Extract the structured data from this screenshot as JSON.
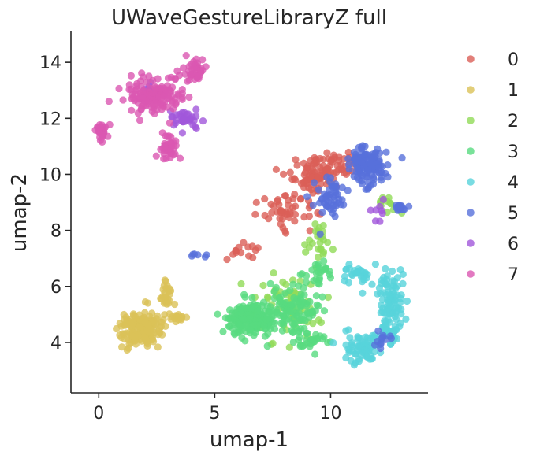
{
  "chart_data": {
    "type": "scatter",
    "title": "UWaveGestureLibraryZ full",
    "xlabel": "umap-1",
    "ylabel": "umap-2",
    "xlim": [
      -1.2,
      14.2
    ],
    "ylim": [
      2.2,
      15.1
    ],
    "xticks": [
      0,
      5,
      10
    ],
    "yticks": [
      4,
      6,
      8,
      10,
      12,
      14
    ],
    "grid": false,
    "legend_position": "right",
    "marker_alpha": 0.8,
    "series": [
      {
        "name": "0",
        "color": "#db5f57",
        "clusters": [
          {
            "cx": 9.2,
            "cy": 9.9,
            "sx": 0.9,
            "sy": 0.6,
            "n": 80,
            "seed": 11
          },
          {
            "cx": 8.1,
            "cy": 8.7,
            "sx": 0.9,
            "sy": 0.5,
            "n": 45,
            "seed": 12
          },
          {
            "cx": 6.2,
            "cy": 7.3,
            "sx": 0.5,
            "sy": 0.4,
            "n": 14,
            "seed": 13
          },
          {
            "cx": 10.5,
            "cy": 10.3,
            "sx": 0.7,
            "sy": 0.4,
            "n": 30,
            "seed": 14
          }
        ]
      },
      {
        "name": "1",
        "color": "#dbc257",
        "clusters": [
          {
            "cx": 1.9,
            "cy": 4.5,
            "sx": 0.75,
            "sy": 0.5,
            "n": 170,
            "seed": 21
          },
          {
            "cx": 2.9,
            "cy": 5.7,
            "sx": 0.2,
            "sy": 0.35,
            "n": 25,
            "seed": 22
          },
          {
            "cx": 3.4,
            "cy": 4.9,
            "sx": 0.35,
            "sy": 0.2,
            "n": 15,
            "seed": 23
          }
        ]
      },
      {
        "name": "2",
        "color": "#91db57",
        "clusters": [
          {
            "cx": 8.3,
            "cy": 5.3,
            "sx": 1.2,
            "sy": 0.9,
            "n": 60,
            "seed": 31
          },
          {
            "cx": 9.5,
            "cy": 7.6,
            "sx": 0.7,
            "sy": 0.5,
            "n": 25,
            "seed": 32
          },
          {
            "cx": 12.3,
            "cy": 8.9,
            "sx": 0.5,
            "sy": 0.3,
            "n": 12,
            "seed": 33
          }
        ]
      },
      {
        "name": "3",
        "color": "#57db80",
        "clusters": [
          {
            "cx": 6.6,
            "cy": 4.8,
            "sx": 0.85,
            "sy": 0.5,
            "n": 190,
            "seed": 41
          },
          {
            "cx": 8.4,
            "cy": 5.1,
            "sx": 0.9,
            "sy": 0.6,
            "n": 90,
            "seed": 42
          },
          {
            "cx": 9.3,
            "cy": 6.3,
            "sx": 0.6,
            "sy": 0.5,
            "n": 30,
            "seed": 43
          },
          {
            "cx": 9.2,
            "cy": 4.1,
            "sx": 0.8,
            "sy": 0.3,
            "n": 30,
            "seed": 44
          }
        ]
      },
      {
        "name": "4",
        "color": "#57d3db",
        "clusters": [
          {
            "cx": 12.6,
            "cy": 5.6,
            "sx": 0.45,
            "sy": 0.8,
            "n": 80,
            "seed": 51
          },
          {
            "cx": 11.4,
            "cy": 3.8,
            "sx": 0.7,
            "sy": 0.45,
            "n": 80,
            "seed": 52
          },
          {
            "cx": 11.3,
            "cy": 6.4,
            "sx": 0.6,
            "sy": 0.3,
            "n": 30,
            "seed": 53
          },
          {
            "cx": 12.5,
            "cy": 4.3,
            "sx": 0.4,
            "sy": 0.35,
            "n": 30,
            "seed": 54
          }
        ]
      },
      {
        "name": "5",
        "color": "#5770db",
        "clusters": [
          {
            "cx": 11.6,
            "cy": 10.3,
            "sx": 0.75,
            "sy": 0.55,
            "n": 130,
            "seed": 61
          },
          {
            "cx": 10.0,
            "cy": 9.2,
            "sx": 0.6,
            "sy": 0.6,
            "n": 50,
            "seed": 62
          },
          {
            "cx": 13.0,
            "cy": 8.8,
            "sx": 0.35,
            "sy": 0.1,
            "n": 15,
            "seed": 63
          },
          {
            "cx": 12.2,
            "cy": 4.0,
            "sx": 0.4,
            "sy": 0.3,
            "n": 12,
            "seed": 64
          },
          {
            "cx": 4.4,
            "cy": 7.1,
            "sx": 0.3,
            "sy": 0.08,
            "n": 6,
            "seed": 65
          }
        ]
      },
      {
        "name": "6",
        "color": "#a157db",
        "clusters": [
          {
            "cx": 3.7,
            "cy": 12.0,
            "sx": 0.6,
            "sy": 0.4,
            "n": 35,
            "seed": 71
          },
          {
            "cx": 2.3,
            "cy": 13.0,
            "sx": 0.5,
            "sy": 0.3,
            "n": 10,
            "seed": 72
          },
          {
            "cx": 12.0,
            "cy": 8.6,
            "sx": 0.4,
            "sy": 0.3,
            "n": 8,
            "seed": 73
          }
        ]
      },
      {
        "name": "7",
        "color": "#db57b2",
        "clusters": [
          {
            "cx": 2.4,
            "cy": 12.8,
            "sx": 0.9,
            "sy": 0.55,
            "n": 150,
            "seed": 81
          },
          {
            "cx": 4.1,
            "cy": 13.7,
            "sx": 0.4,
            "sy": 0.4,
            "n": 40,
            "seed": 82
          },
          {
            "cx": 3.0,
            "cy": 10.9,
            "sx": 0.3,
            "sy": 0.5,
            "n": 40,
            "seed": 83
          },
          {
            "cx": 0.1,
            "cy": 11.5,
            "sx": 0.25,
            "sy": 0.3,
            "n": 30,
            "seed": 84
          }
        ]
      }
    ]
  }
}
